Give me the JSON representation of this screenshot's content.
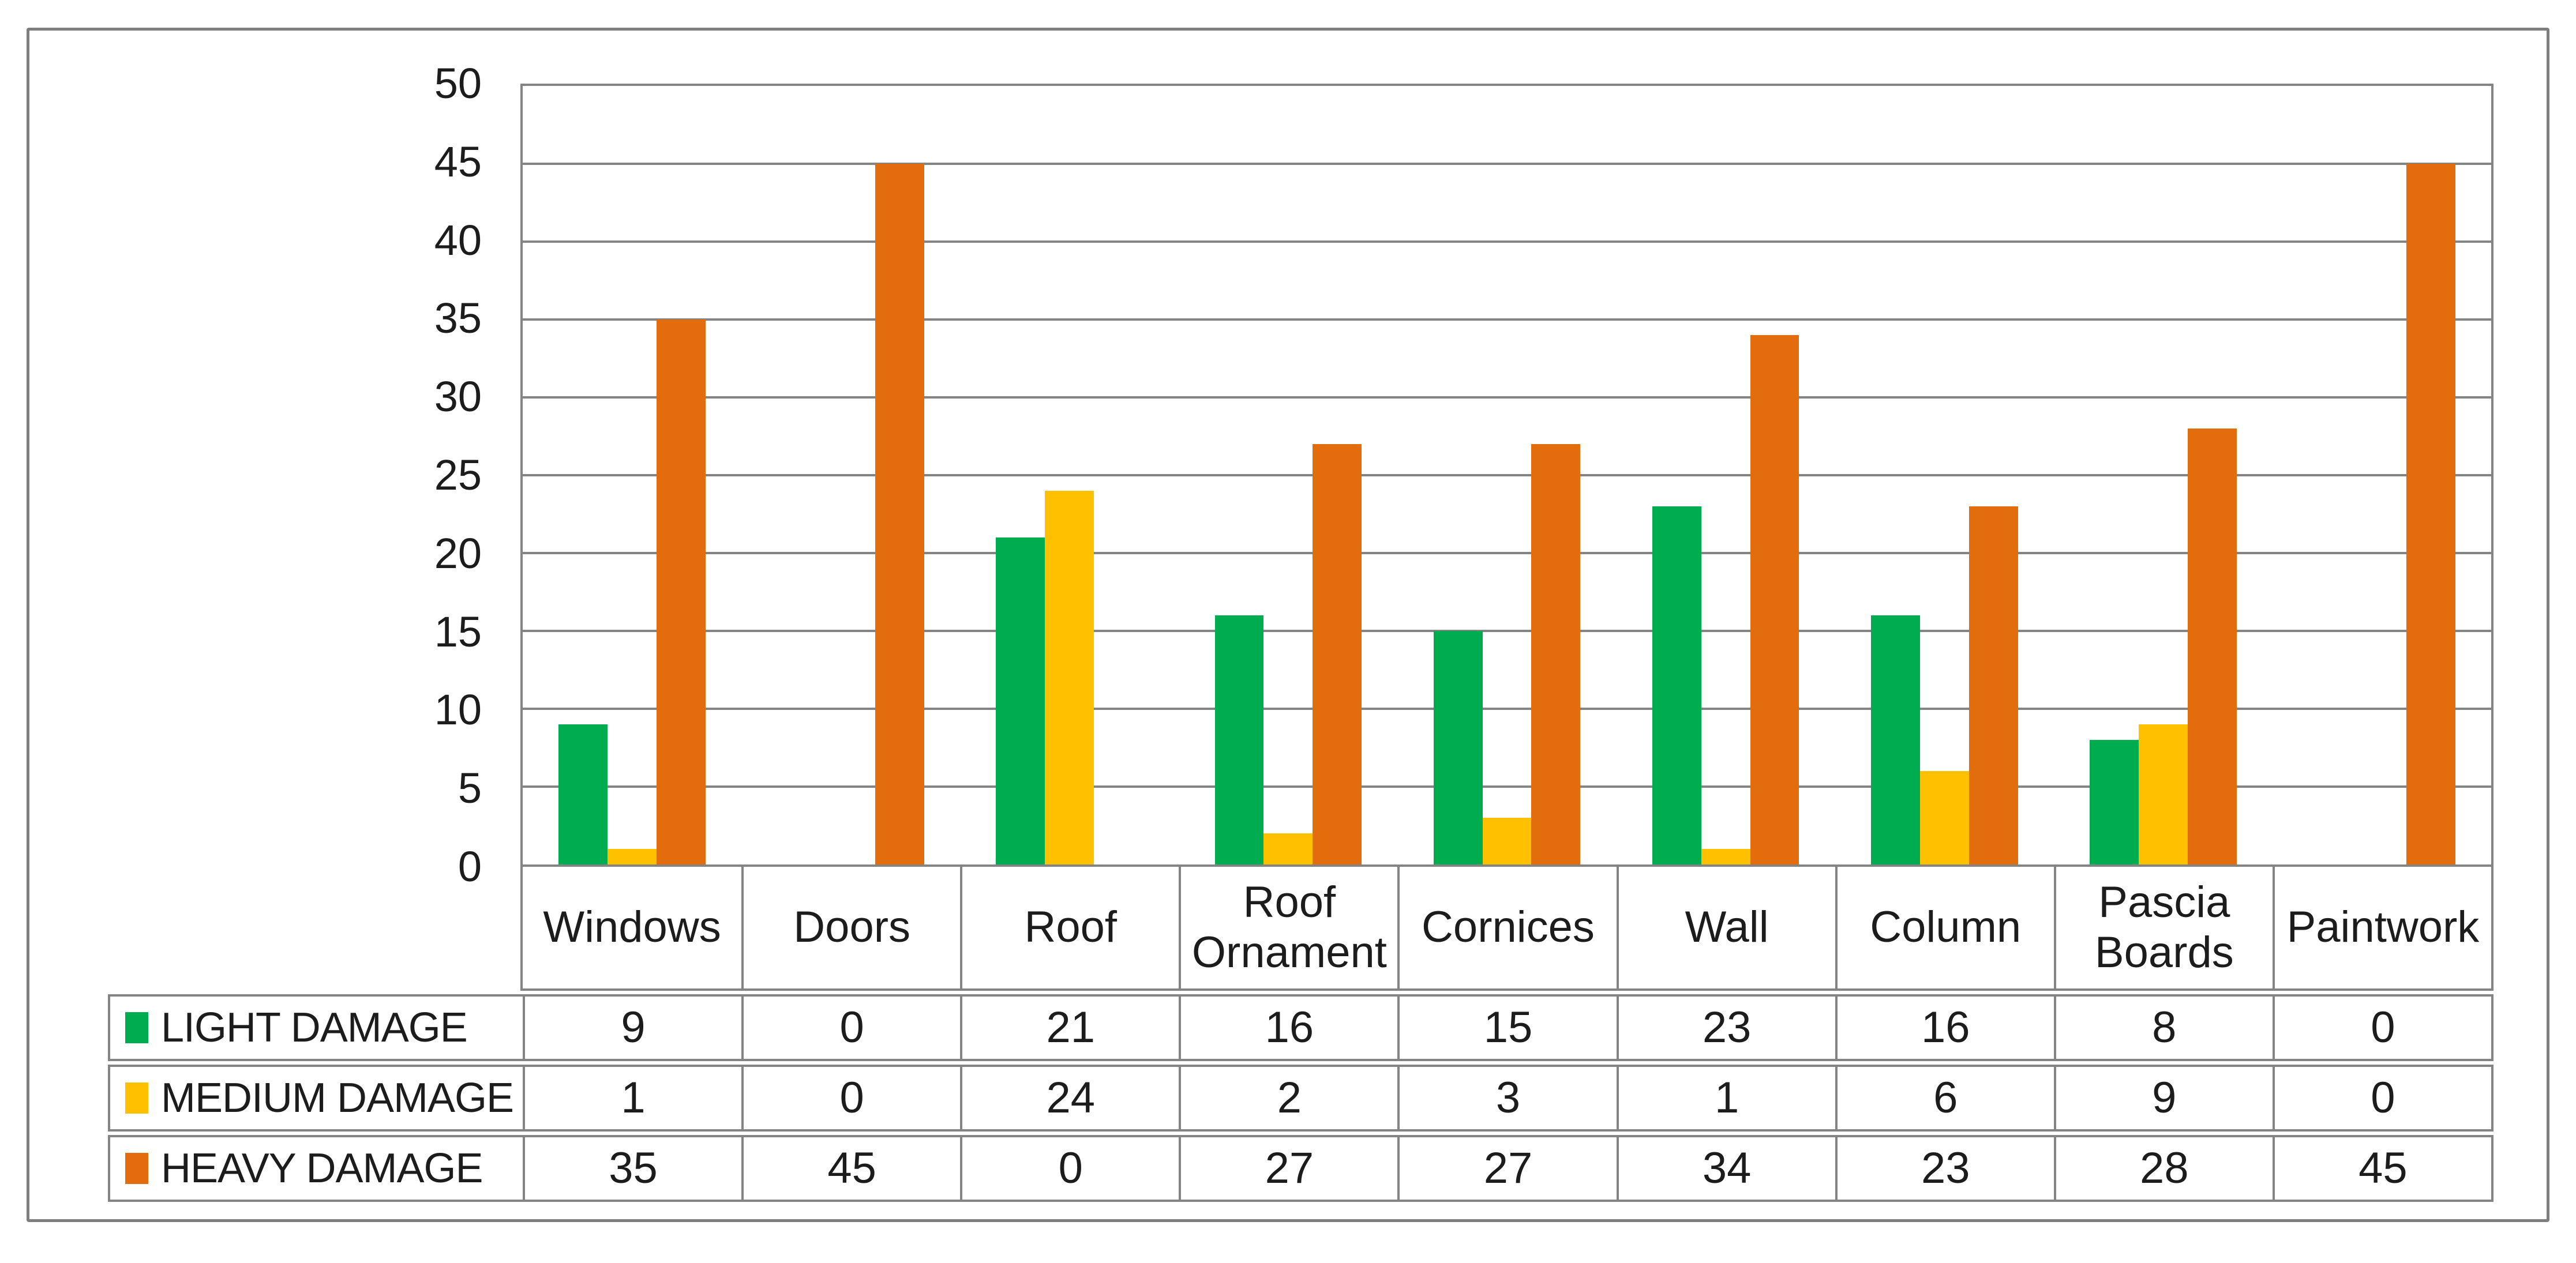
{
  "chart_data": {
    "type": "bar",
    "categories": [
      "Windows",
      "Doors",
      "Roof",
      "Roof Ornament",
      "Cornices",
      "Wall",
      "Column",
      "Pascia Boards",
      "Paintwork"
    ],
    "series": [
      {
        "name": "LIGHT DAMAGE",
        "color": "#00AC50",
        "values": [
          9,
          0,
          21,
          16,
          15,
          23,
          16,
          8,
          0
        ]
      },
      {
        "name": "MEDIUM DAMAGE",
        "color": "#FFC000",
        "values": [
          1,
          0,
          24,
          2,
          3,
          1,
          6,
          9,
          0
        ]
      },
      {
        "name": "HEAVY DAMAGE",
        "color": "#E36D0C",
        "values": [
          35,
          45,
          0,
          27,
          27,
          34,
          23,
          28,
          45
        ]
      }
    ],
    "ylim": [
      0,
      50
    ],
    "yticks": [
      0,
      5,
      10,
      15,
      20,
      25,
      30,
      35,
      40,
      45,
      50
    ],
    "grid": "horizontal-only",
    "legend_position": "data-table-row-keys"
  },
  "colors": {
    "frame_border": "#7E7E7E",
    "gridline": "#848484",
    "table_border": "#848484",
    "text": "#1C1C1C",
    "background": "#FFFFFF"
  }
}
